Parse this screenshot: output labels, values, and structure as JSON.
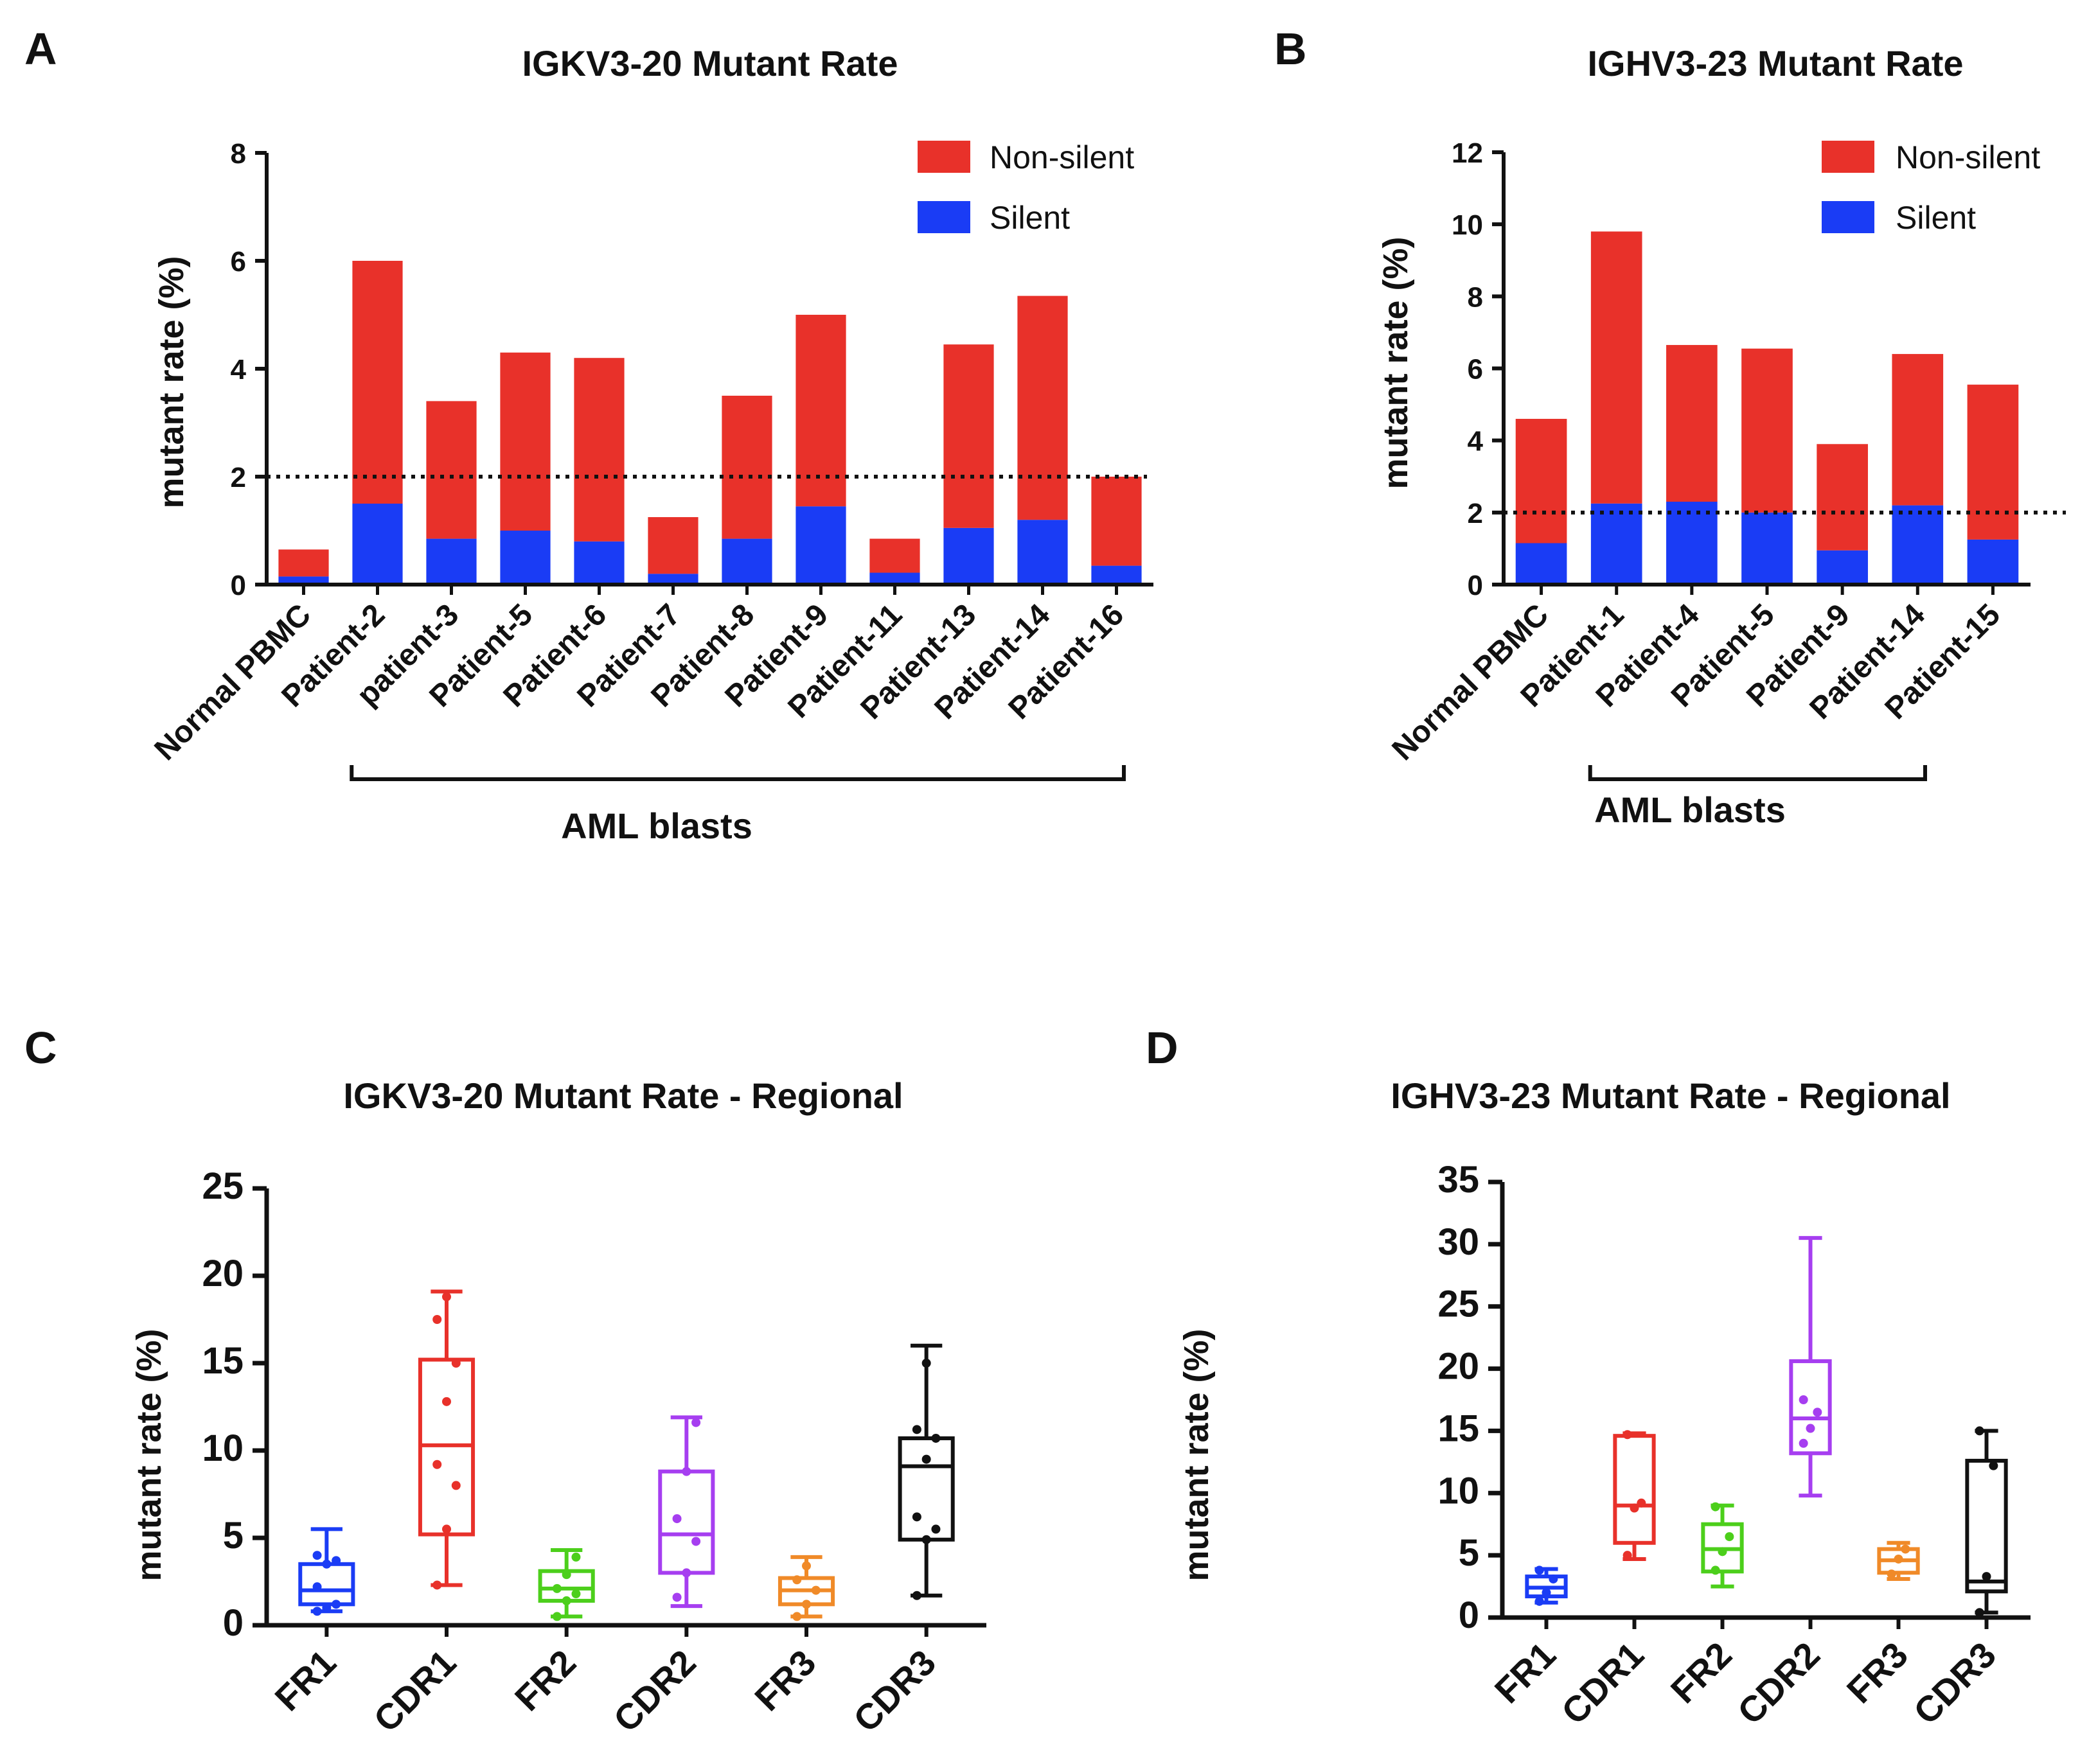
{
  "colors": {
    "non_silent": "#e8312a",
    "silent": "#1a3cf5",
    "axis": "#111111"
  },
  "chart_data": [
    {
      "panel": "A",
      "type": "bar",
      "stacked": true,
      "title": "IGKV3-20 Mutant Rate",
      "ylabel": "mutant rate (%)",
      "xlabel": "",
      "ylim": [
        0,
        8
      ],
      "yticks": [
        0,
        2,
        4,
        6,
        8
      ],
      "reference_line": 2,
      "categories": [
        "Normal PBMC",
        "Patient-2",
        "patient-3",
        "Patient-5",
        "Patient-6",
        "Patient-7",
        "Patient-8",
        "Patient-9",
        "Patient-11",
        "Patient-13",
        "Patient-14",
        "Patient-16"
      ],
      "series": [
        {
          "name": "Silent",
          "values": [
            0.15,
            1.5,
            0.85,
            1.0,
            0.8,
            0.2,
            0.85,
            1.45,
            0.22,
            1.05,
            1.2,
            0.35
          ]
        },
        {
          "name": "Non-silent",
          "values": [
            0.5,
            4.5,
            2.55,
            3.3,
            3.4,
            1.05,
            2.65,
            3.55,
            0.63,
            3.4,
            4.15,
            1.65
          ]
        }
      ],
      "legend": [
        "Non-silent",
        "Silent"
      ],
      "legend_position": "top-right",
      "group_bracket": {
        "label": "AML blasts",
        "from": "Patient-2",
        "to": "Patient-16"
      }
    },
    {
      "panel": "B",
      "type": "bar",
      "stacked": true,
      "title": "IGHV3-23 Mutant Rate",
      "ylabel": "mutant rate (%)",
      "xlabel": "",
      "ylim": [
        0,
        12
      ],
      "yticks": [
        0,
        2,
        4,
        6,
        8,
        10,
        12
      ],
      "reference_line": 2,
      "categories": [
        "Normal PBMC",
        "Patient-1",
        "Patient-4",
        "Patient-5",
        "Patient-9",
        "Patient-14",
        "Patient-15"
      ],
      "series": [
        {
          "name": "Silent",
          "values": [
            1.15,
            2.25,
            2.3,
            2.0,
            0.95,
            2.2,
            1.25
          ]
        },
        {
          "name": "Non-silent",
          "values": [
            3.45,
            7.55,
            4.35,
            4.55,
            2.95,
            4.2,
            4.3
          ]
        }
      ],
      "legend": [
        "Non-silent",
        "Silent"
      ],
      "legend_position": "top-right",
      "group_bracket": {
        "label": "AML blasts",
        "from": "Patient-1",
        "to": "Patient-14"
      }
    },
    {
      "panel": "C",
      "type": "box",
      "title": "IGKV3-20 Mutant Rate - Regional",
      "ylabel": "mutant rate (%)",
      "xlabel": "",
      "ylim": [
        0,
        25
      ],
      "yticks": [
        0,
        5,
        10,
        15,
        20,
        25
      ],
      "categories": [
        "FR1",
        "CDR1",
        "FR2",
        "CDR2",
        "FR3",
        "CDR3"
      ],
      "box_colors": [
        "#1a3cf5",
        "#e8312a",
        "#4ccf1b",
        "#a63ef0",
        "#f08a28",
        "#111111"
      ],
      "boxes": [
        {
          "min": 0.8,
          "q1": 1.2,
          "median": 2.0,
          "q3": 3.5,
          "max": 5.5,
          "points": [
            0.8,
            1.0,
            1.2,
            2.2,
            3.5,
            3.7,
            4.0
          ]
        },
        {
          "min": 2.3,
          "q1": 5.2,
          "median": 10.3,
          "q3": 15.2,
          "max": 19.1,
          "points": [
            2.3,
            5.5,
            8.0,
            9.2,
            12.8,
            15.0,
            17.5,
            18.8
          ]
        },
        {
          "min": 0.5,
          "q1": 1.4,
          "median": 2.1,
          "q3": 3.1,
          "max": 4.3,
          "points": [
            0.5,
            1.4,
            1.8,
            2.1,
            2.9,
            3.9
          ]
        },
        {
          "min": 1.1,
          "q1": 3.0,
          "median": 5.2,
          "q3": 8.8,
          "max": 11.9,
          "points": [
            1.6,
            3.0,
            4.8,
            6.1,
            8.8,
            11.6
          ]
        },
        {
          "min": 0.5,
          "q1": 1.2,
          "median": 2.0,
          "q3": 2.7,
          "max": 3.9,
          "points": [
            0.5,
            1.2,
            2.0,
            2.6,
            3.4
          ]
        },
        {
          "min": 1.7,
          "q1": 4.9,
          "median": 9.1,
          "q3": 10.7,
          "max": 16.0,
          "points": [
            1.7,
            4.9,
            5.5,
            6.2,
            9.5,
            10.7,
            11.2,
            15.0
          ]
        }
      ]
    },
    {
      "panel": "D",
      "type": "box",
      "title": "IGHV3-23 Mutant Rate - Regional",
      "ylabel": "mutant rate (%)",
      "xlabel": "",
      "ylim": [
        0,
        35
      ],
      "yticks": [
        0,
        5,
        10,
        15,
        20,
        25,
        30,
        35
      ],
      "categories": [
        "FR1",
        "CDR1",
        "FR2",
        "CDR2",
        "FR3",
        "CDR3"
      ],
      "box_colors": [
        "#1a3cf5",
        "#e8312a",
        "#4ccf1b",
        "#a63ef0",
        "#f08a28",
        "#111111"
      ],
      "boxes": [
        {
          "min": 1.2,
          "q1": 1.7,
          "median": 2.4,
          "q3": 3.3,
          "max": 3.9,
          "points": [
            1.3,
            2.0,
            3.1,
            3.8
          ]
        },
        {
          "min": 4.7,
          "q1": 6.0,
          "median": 9.0,
          "q3": 14.6,
          "max": 14.8,
          "points": [
            5.0,
            8.8,
            9.2,
            14.7
          ]
        },
        {
          "min": 2.5,
          "q1": 3.7,
          "median": 5.5,
          "q3": 7.5,
          "max": 9.0,
          "points": [
            3.8,
            5.3,
            6.5,
            8.9
          ]
        },
        {
          "min": 9.8,
          "q1": 13.2,
          "median": 16.0,
          "q3": 20.6,
          "max": 30.5,
          "points": [
            14.0,
            15.2,
            16.5,
            17.5
          ]
        },
        {
          "min": 3.1,
          "q1": 3.6,
          "median": 4.6,
          "q3": 5.5,
          "max": 6.0,
          "points": [
            3.5,
            4.7,
            5.5
          ]
        },
        {
          "min": 0.4,
          "q1": 2.1,
          "median": 2.9,
          "q3": 12.6,
          "max": 15.0,
          "points": [
            0.4,
            3.3,
            12.2,
            15.0
          ]
        }
      ]
    }
  ]
}
